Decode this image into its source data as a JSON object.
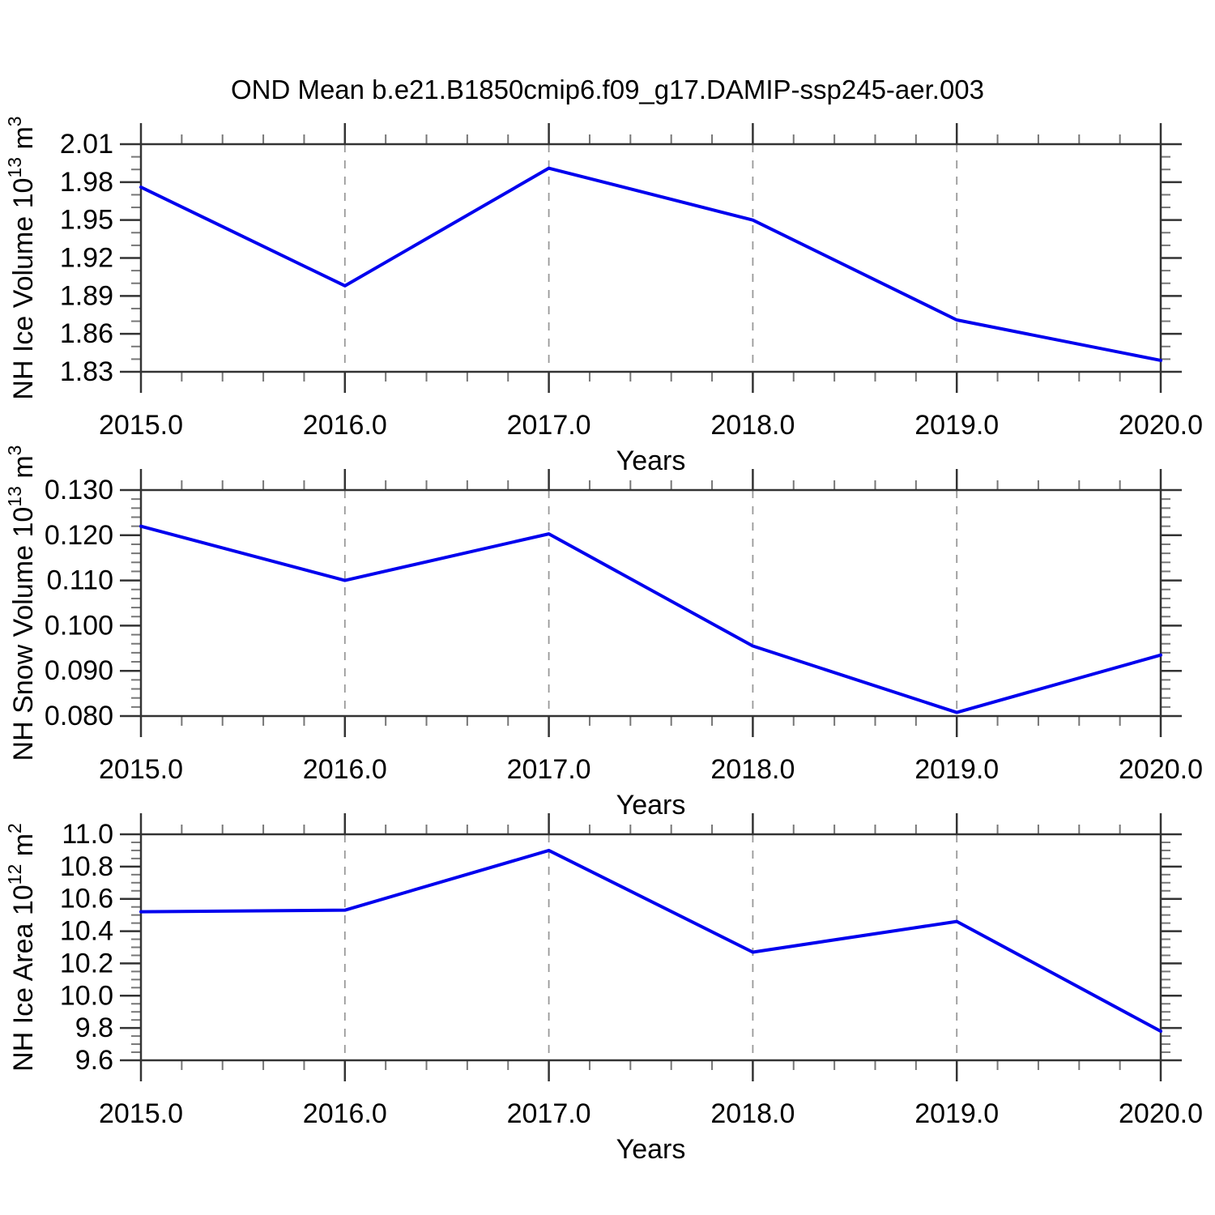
{
  "title": "OND Mean b.e21.B1850cmip6.f09_g17.DAMIP-ssp245-aer.003",
  "colors": {
    "line": "#0000ee",
    "grid": "#999999",
    "axis": "#333333",
    "minor_tick": "#777777",
    "text": "#000000",
    "background": "#ffffff"
  },
  "x_axis": {
    "label": "Years",
    "range": [
      2015,
      2020
    ],
    "major_step": 1,
    "minor_step": 0.2,
    "tick_labels": [
      "2015.0",
      "2016.0",
      "2017.0",
      "2018.0",
      "2019.0",
      "2020.0"
    ],
    "gridlines": [
      2016,
      2017,
      2018,
      2019
    ]
  },
  "chart_data": [
    {
      "id": "nh-ice-volume",
      "type": "line",
      "ylabel_text": "NH Ice Volume 10^13 m^3",
      "ylabel_parts": [
        {
          "t": "NH Ice Volume 10"
        },
        {
          "t": "13",
          "sup": true
        },
        {
          "t": " m"
        },
        {
          "t": "3",
          "sup": true
        }
      ],
      "xlabel": "Years",
      "x": [
        2015,
        2016,
        2017,
        2018,
        2019,
        2020
      ],
      "values": [
        1.976,
        1.898,
        1.991,
        1.95,
        1.871,
        1.839
      ],
      "ylim": [
        1.83,
        2.01
      ],
      "ytick_step": 0.03,
      "yminor_step": 0.01,
      "ytick_labels": [
        "2.01",
        "1.98",
        "1.95",
        "1.92",
        "1.89",
        "1.86",
        "1.83"
      ],
      "xtick_labels": [
        "2015.0",
        "2016.0",
        "2017.0",
        "2018.0",
        "2019.0",
        "2020.0"
      ],
      "grid": "vertical-dashed",
      "legend": "none"
    },
    {
      "id": "nh-snow-volume",
      "type": "line",
      "ylabel_text": "NH Snow Volume 10^13 m^3",
      "ylabel_parts": [
        {
          "t": "NH Snow Volume 10"
        },
        {
          "t": "13",
          "sup": true
        },
        {
          "t": " m"
        },
        {
          "t": "3",
          "sup": true
        }
      ],
      "xlabel": "Years",
      "x": [
        2015,
        2016,
        2017,
        2018,
        2019,
        2020
      ],
      "values": [
        0.122,
        0.11,
        0.1203,
        0.0955,
        0.0808,
        0.0935
      ],
      "ylim": [
        0.08,
        0.13
      ],
      "ytick_step": 0.01,
      "yminor_step": 0.002,
      "ytick_labels": [
        "0.130",
        "0.120",
        "0.110",
        "0.100",
        "0.090",
        "0.080"
      ],
      "xtick_labels": [
        "2015.0",
        "2016.0",
        "2017.0",
        "2018.0",
        "2019.0",
        "2020.0"
      ],
      "grid": "vertical-dashed",
      "legend": "none"
    },
    {
      "id": "nh-ice-area",
      "type": "line",
      "ylabel_text": "NH Ice Area 10^12 m^2",
      "ylabel_parts": [
        {
          "t": "NH Ice Area 10"
        },
        {
          "t": "12",
          "sup": true
        },
        {
          "t": " m"
        },
        {
          "t": "2",
          "sup": true
        }
      ],
      "xlabel": "Years",
      "x": [
        2015,
        2016,
        2017,
        2018,
        2019,
        2020
      ],
      "values": [
        10.52,
        10.53,
        10.9,
        10.27,
        10.46,
        9.78
      ],
      "ylim": [
        9.6,
        11.0
      ],
      "ytick_step": 0.2,
      "yminor_step": 0.05,
      "ytick_labels": [
        "11.0",
        "10.8",
        "10.6",
        "10.4",
        "10.2",
        "10.0",
        "9.8",
        "9.6"
      ],
      "xtick_labels": [
        "2015.0",
        "2016.0",
        "2017.0",
        "2018.0",
        "2019.0",
        "2020.0"
      ],
      "grid": "vertical-dashed",
      "legend": "none"
    }
  ]
}
